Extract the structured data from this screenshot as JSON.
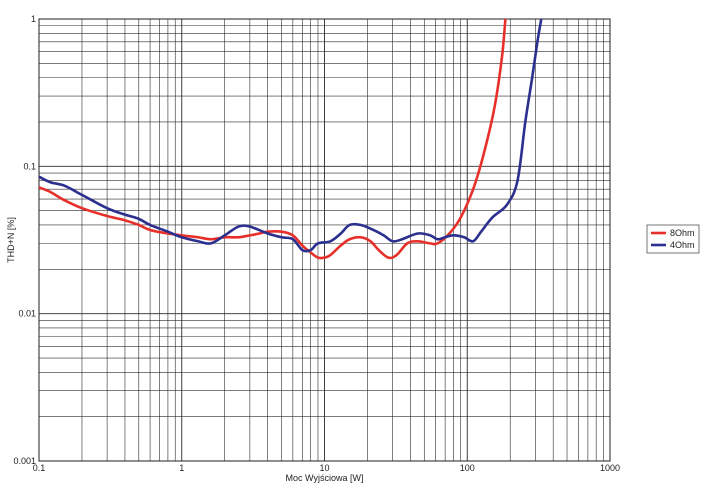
{
  "chart_data": {
    "type": "line",
    "title": "",
    "xlabel": "Moc Wyjściowa [W]",
    "ylabel": "THD+N [%]",
    "x_scale": "log",
    "y_scale": "log",
    "xlim": [
      0.1,
      1000
    ],
    "ylim": [
      0.001,
      1
    ],
    "x_ticks": [
      "0.1",
      "1",
      "10",
      "100",
      "1000"
    ],
    "y_ticks": [
      "1",
      "0.1",
      "0.01",
      "0.001"
    ],
    "grid": true,
    "legend_position": "right",
    "series": [
      {
        "name": "8Ohm",
        "color": "#e8302a",
        "points": [
          [
            0.1,
            0.072
          ],
          [
            0.12,
            0.067
          ],
          [
            0.15,
            0.059
          ],
          [
            0.2,
            0.052
          ],
          [
            0.3,
            0.046
          ],
          [
            0.4,
            0.043
          ],
          [
            0.5,
            0.04
          ],
          [
            0.6,
            0.037
          ],
          [
            0.8,
            0.035
          ],
          [
            1.0,
            0.034
          ],
          [
            1.3,
            0.033
          ],
          [
            1.6,
            0.032
          ],
          [
            2.0,
            0.033
          ],
          [
            2.5,
            0.033
          ],
          [
            3.0,
            0.034
          ],
          [
            3.5,
            0.035
          ],
          [
            4.0,
            0.036
          ],
          [
            5.0,
            0.036
          ],
          [
            6.0,
            0.034
          ],
          [
            7.0,
            0.029
          ],
          [
            8.0,
            0.026
          ],
          [
            9.0,
            0.024
          ],
          [
            10.0,
            0.024
          ],
          [
            11.0,
            0.025
          ],
          [
            13.0,
            0.029
          ],
          [
            15.0,
            0.032
          ],
          [
            18.0,
            0.033
          ],
          [
            21.0,
            0.031
          ],
          [
            24.0,
            0.027
          ],
          [
            28.0,
            0.024
          ],
          [
            32.0,
            0.025
          ],
          [
            38.0,
            0.03
          ],
          [
            45.0,
            0.031
          ],
          [
            55.0,
            0.03
          ],
          [
            62.0,
            0.03
          ],
          [
            75.0,
            0.035
          ],
          [
            90.0,
            0.045
          ],
          [
            110.0,
            0.07
          ],
          [
            130.0,
            0.12
          ],
          [
            155.0,
            0.25
          ],
          [
            175.0,
            0.55
          ],
          [
            185.0,
            1.0
          ]
        ]
      },
      {
        "name": "4Ohm",
        "color": "#2b2f8e",
        "points": [
          [
            0.1,
            0.085
          ],
          [
            0.12,
            0.078
          ],
          [
            0.15,
            0.074
          ],
          [
            0.2,
            0.064
          ],
          [
            0.3,
            0.052
          ],
          [
            0.4,
            0.047
          ],
          [
            0.5,
            0.044
          ],
          [
            0.6,
            0.04
          ],
          [
            0.8,
            0.036
          ],
          [
            1.0,
            0.033
          ],
          [
            1.3,
            0.031
          ],
          [
            1.6,
            0.03
          ],
          [
            2.0,
            0.034
          ],
          [
            2.5,
            0.039
          ],
          [
            3.0,
            0.039
          ],
          [
            4.0,
            0.035
          ],
          [
            5.0,
            0.033
          ],
          [
            6.0,
            0.032
          ],
          [
            7.0,
            0.027
          ],
          [
            8.0,
            0.027
          ],
          [
            9.0,
            0.03
          ],
          [
            11.0,
            0.031
          ],
          [
            13.0,
            0.035
          ],
          [
            15.0,
            0.04
          ],
          [
            18.0,
            0.04
          ],
          [
            22.0,
            0.037
          ],
          [
            26.0,
            0.034
          ],
          [
            30.0,
            0.031
          ],
          [
            35.0,
            0.032
          ],
          [
            45.0,
            0.035
          ],
          [
            55.0,
            0.034
          ],
          [
            62.0,
            0.032
          ],
          [
            70.0,
            0.033
          ],
          [
            80.0,
            0.034
          ],
          [
            95.0,
            0.033
          ],
          [
            110.0,
            0.031
          ],
          [
            125.0,
            0.036
          ],
          [
            150.0,
            0.045
          ],
          [
            190.0,
            0.055
          ],
          [
            225.0,
            0.08
          ],
          [
            255.0,
            0.2
          ],
          [
            285.0,
            0.4
          ],
          [
            310.0,
            0.7
          ],
          [
            330.0,
            1.0
          ]
        ]
      }
    ]
  }
}
